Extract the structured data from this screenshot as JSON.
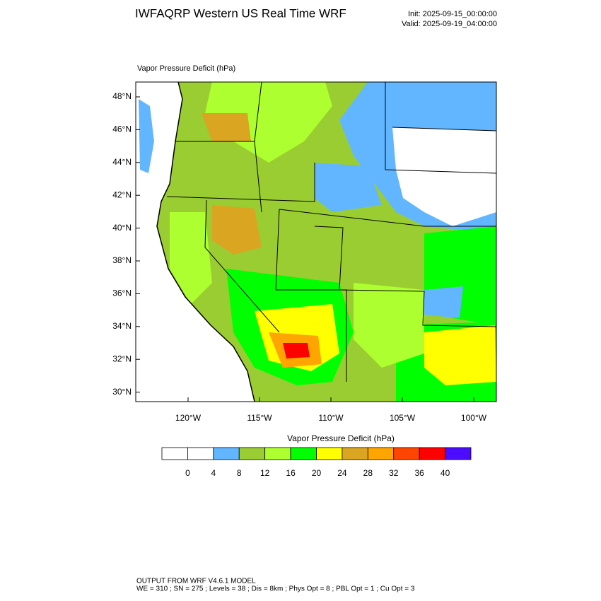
{
  "header": {
    "title": "IWFAQRP Western US Real Time WRF",
    "init": "Init: 2025-09-15_00:00:00",
    "valid": "Valid: 2025-09-19_04:00:00"
  },
  "map": {
    "title": "Vapor Pressure Deficit   (hPa)",
    "lat_labels": [
      "48°N",
      "46°N",
      "44°N",
      "42°N",
      "40°N",
      "38°N",
      "36°N",
      "34°N",
      "32°N",
      "30°N"
    ],
    "lon_labels": [
      "120°W",
      "115°W",
      "110°W",
      "105°W",
      "100°W"
    ]
  },
  "colorbar": {
    "title": "Vapor Pressure Deficit  (hPa)",
    "colors": [
      "#ffffff",
      "#ffffff",
      "#62b6ff",
      "#9acd32",
      "#adff2f",
      "#00ff00",
      "#ffff00",
      "#daa520",
      "#ffa500",
      "#ff4500",
      "#ff0000",
      "#4b0cff"
    ],
    "labels": [
      0,
      4,
      8,
      12,
      16,
      20,
      24,
      28,
      32,
      36,
      40
    ]
  },
  "footer": {
    "line1": "OUTPUT FROM WRF V4.6.1 MODEL",
    "line2": "WE = 310 ; SN = 275 ; Levels = 38 ; Dis = 8km ; Phys Opt = 8 ; PBL Opt = 1 ; Cu Opt = 3"
  }
}
